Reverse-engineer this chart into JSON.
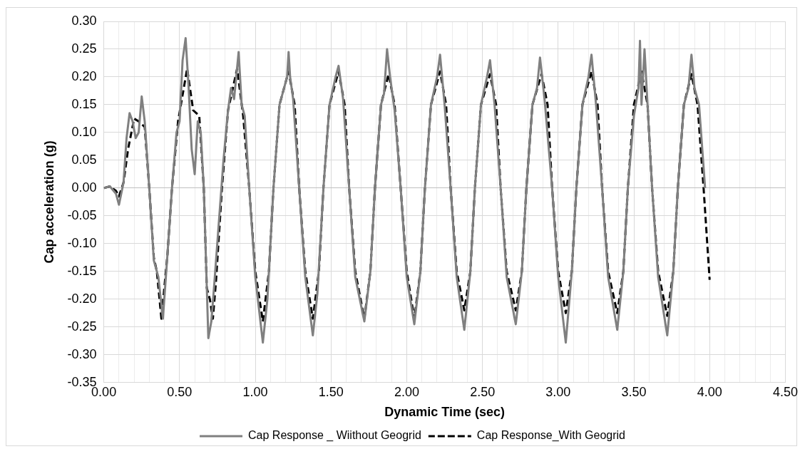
{
  "chart_data": {
    "type": "line",
    "xlabel": "Dynamic Time (sec)",
    "ylabel": "Cap acceleration (g)",
    "xlim": [
      0,
      4.5
    ],
    "xticks": [
      {
        "value": 0,
        "label": "0.00"
      },
      {
        "value": 0.1,
        "label": null
      },
      {
        "value": 0.2,
        "label": null
      },
      {
        "value": 0.3,
        "label": null
      },
      {
        "value": 0.4,
        "label": null
      },
      {
        "value": 0.5,
        "label": "0.50"
      },
      {
        "value": 0.6,
        "label": null
      },
      {
        "value": 0.7,
        "label": null
      },
      {
        "value": 0.8,
        "label": null
      },
      {
        "value": 0.9,
        "label": null
      },
      {
        "value": 1,
        "label": "1.00"
      },
      {
        "value": 1.1,
        "label": null
      },
      {
        "value": 1.2,
        "label": null
      },
      {
        "value": 1.3,
        "label": null
      },
      {
        "value": 1.4,
        "label": null
      },
      {
        "value": 1.5,
        "label": "1.50"
      },
      {
        "value": 1.6,
        "label": null
      },
      {
        "value": 1.7,
        "label": null
      },
      {
        "value": 1.8,
        "label": null
      },
      {
        "value": 1.9,
        "label": null
      },
      {
        "value": 2,
        "label": "2.00"
      },
      {
        "value": 2.1,
        "label": null
      },
      {
        "value": 2.2,
        "label": null
      },
      {
        "value": 2.3,
        "label": null
      },
      {
        "value": 2.4,
        "label": null
      },
      {
        "value": 2.5,
        "label": "2.50"
      },
      {
        "value": 2.6,
        "label": null
      },
      {
        "value": 2.7,
        "label": null
      },
      {
        "value": 2.8,
        "label": null
      },
      {
        "value": 2.9,
        "label": null
      },
      {
        "value": 3,
        "label": "3.00"
      },
      {
        "value": 3.1,
        "label": null
      },
      {
        "value": 3.2,
        "label": null
      },
      {
        "value": 3.3,
        "label": null
      },
      {
        "value": 3.4,
        "label": null
      },
      {
        "value": 3.5,
        "label": "3.50"
      },
      {
        "value": 3.6,
        "label": null
      },
      {
        "value": 3.7,
        "label": null
      },
      {
        "value": 3.8,
        "label": null
      },
      {
        "value": 3.9,
        "label": null
      },
      {
        "value": 4,
        "label": "4.00"
      },
      {
        "value": 4.1,
        "label": null
      },
      {
        "value": 4.2,
        "label": null
      },
      {
        "value": 4.3,
        "label": null
      },
      {
        "value": 4.4,
        "label": null
      },
      {
        "value": 4.5,
        "label": "4.50"
      }
    ],
    "ylim": [
      -0.35,
      0.3
    ],
    "yticks": [
      {
        "value": -0.35,
        "label": "-0.35"
      },
      {
        "value": -0.3,
        "label": "-0.30"
      },
      {
        "value": -0.25,
        "label": "-0.25"
      },
      {
        "value": -0.2,
        "label": "-0.20"
      },
      {
        "value": -0.15,
        "label": "-0.15"
      },
      {
        "value": -0.1,
        "label": "-0.10"
      },
      {
        "value": -0.05,
        "label": "-0.05"
      },
      {
        "value": 0,
        "label": "0.00"
      },
      {
        "value": 0.05,
        "label": "0.05"
      },
      {
        "value": 0.1,
        "label": "0.10"
      },
      {
        "value": 0.15,
        "label": "0.15"
      },
      {
        "value": 0.2,
        "label": "0.20"
      },
      {
        "value": 0.25,
        "label": "0.25"
      },
      {
        "value": 0.3,
        "label": "0.30"
      }
    ],
    "grid": true,
    "legend": "bottom",
    "marker": "none",
    "series": [
      {
        "name": "Cap Response _ Wiithout Geogrid",
        "color": "#808080",
        "line_style": "solid",
        "x": [
          0,
          0.04,
          0.08,
          0.1,
          0.13,
          0.15,
          0.17,
          0.19,
          0.21,
          0.23,
          0.25,
          0.27,
          0.3,
          0.33,
          0.36,
          0.39,
          0.42,
          0.45,
          0.48,
          0.5,
          0.52,
          0.54,
          0.56,
          0.58,
          0.6,
          0.62,
          0.64,
          0.66,
          0.69,
          0.71,
          0.73,
          0.76,
          0.79,
          0.82,
          0.84,
          0.86,
          0.89,
          0.91,
          0.93,
          0.96,
          1.0,
          1.05,
          1.08,
          1.12,
          1.16,
          1.19,
          1.21,
          1.22,
          1.23,
          1.25,
          1.29,
          1.33,
          1.38,
          1.41,
          1.45,
          1.49,
          1.53,
          1.55,
          1.58,
          1.62,
          1.66,
          1.72,
          1.76,
          1.79,
          1.83,
          1.85,
          1.87,
          1.89,
          1.92,
          1.96,
          2.0,
          2.05,
          2.09,
          2.12,
          2.16,
          2.2,
          2.22,
          2.25,
          2.29,
          2.33,
          2.38,
          2.42,
          2.45,
          2.49,
          2.53,
          2.55,
          2.58,
          2.62,
          2.66,
          2.72,
          2.76,
          2.79,
          2.83,
          2.86,
          2.88,
          2.91,
          2.96,
          3.0,
          3.05,
          3.09,
          3.12,
          3.16,
          3.2,
          3.22,
          3.25,
          3.29,
          3.33,
          3.39,
          3.43,
          3.46,
          3.5,
          3.53,
          3.54,
          3.55,
          3.57,
          3.59,
          3.62,
          3.66,
          3.72,
          3.76,
          3.79,
          3.83,
          3.86,
          3.88,
          3.9,
          3.93,
          3.97
        ],
        "values": [
          0,
          0.003,
          -0.01,
          -0.03,
          0.01,
          0.09,
          0.135,
          0.12,
          0.09,
          0.1,
          0.165,
          0.12,
          0,
          -0.13,
          -0.16,
          -0.235,
          -0.12,
          0,
          0.1,
          0.12,
          0.23,
          0.27,
          0.18,
          0.07,
          0.025,
          0.12,
          0.1,
          0,
          -0.27,
          -0.24,
          -0.17,
          -0.06,
          0.05,
          0.14,
          0.18,
          0.16,
          0.245,
          0.15,
          0.13,
          0,
          -0.16,
          -0.278,
          -0.2,
          0,
          0.15,
          0.18,
          0.2,
          0.245,
          0.2,
          0.16,
          0,
          -0.16,
          -0.265,
          -0.19,
          0,
          0.15,
          0.2,
          0.22,
          0.16,
          0,
          -0.16,
          -0.24,
          -0.15,
          0,
          0.15,
          0.17,
          0.25,
          0.2,
          0.14,
          0,
          -0.16,
          -0.245,
          -0.15,
          0,
          0.15,
          0.2,
          0.24,
          0.15,
          0,
          -0.16,
          -0.255,
          -0.15,
          0,
          0.15,
          0.2,
          0.23,
          0.15,
          0,
          -0.16,
          -0.245,
          -0.15,
          0,
          0.15,
          0.18,
          0.235,
          0.16,
          0,
          -0.16,
          -0.278,
          -0.15,
          0,
          0.15,
          0.2,
          0.24,
          0.15,
          0,
          -0.16,
          -0.255,
          -0.15,
          0,
          0.13,
          0.18,
          0.265,
          0.15,
          0.25,
          0.15,
          0,
          -0.16,
          -0.265,
          -0.15,
          0,
          0.15,
          0.18,
          0.24,
          0.18,
          0.15,
          0
        ]
      },
      {
        "name": "Cap Response_With Geogrid",
        "color": "#000000",
        "line_style": "dashed",
        "x": [
          0,
          0.04,
          0.08,
          0.1,
          0.13,
          0.16,
          0.2,
          0.23,
          0.27,
          0.3,
          0.33,
          0.35,
          0.38,
          0.42,
          0.45,
          0.49,
          0.55,
          0.59,
          0.63,
          0.66,
          0.68,
          0.7,
          0.72,
          0.74,
          0.78,
          0.82,
          0.88,
          0.92,
          0.96,
          1.0,
          1.05,
          1.09,
          1.12,
          1.16,
          1.22,
          1.26,
          1.29,
          1.33,
          1.38,
          1.42,
          1.45,
          1.49,
          1.55,
          1.59,
          1.62,
          1.66,
          1.72,
          1.76,
          1.79,
          1.83,
          1.88,
          1.92,
          1.96,
          2.0,
          2.05,
          2.09,
          2.12,
          2.16,
          2.22,
          2.26,
          2.29,
          2.33,
          2.38,
          2.42,
          2.45,
          2.49,
          2.55,
          2.59,
          2.62,
          2.66,
          2.72,
          2.76,
          2.79,
          2.83,
          2.89,
          2.93,
          2.96,
          3.0,
          3.05,
          3.09,
          3.12,
          3.16,
          3.22,
          3.26,
          3.29,
          3.33,
          3.39,
          3.43,
          3.46,
          3.5,
          3.55,
          3.59,
          3.62,
          3.66,
          3.72,
          3.76,
          3.79,
          3.83,
          3.88,
          3.92,
          3.96,
          4.0
        ],
        "values": [
          0,
          0.003,
          -0.005,
          -0.015,
          0.01,
          0.07,
          0.125,
          0.12,
          0.11,
          0,
          -0.125,
          -0.15,
          -0.235,
          -0.12,
          0,
          0.12,
          0.215,
          0.14,
          0.13,
          0,
          -0.18,
          -0.2,
          -0.235,
          -0.17,
          0,
          0.14,
          0.215,
          0.13,
          0,
          -0.15,
          -0.24,
          -0.15,
          0,
          0.15,
          0.21,
          0.15,
          0,
          -0.15,
          -0.235,
          -0.15,
          0,
          0.15,
          0.21,
          0.15,
          0,
          -0.15,
          -0.235,
          -0.15,
          0,
          0.15,
          0.205,
          0.15,
          0,
          -0.15,
          -0.235,
          -0.15,
          0,
          0.15,
          0.21,
          0.15,
          0,
          -0.15,
          -0.22,
          -0.15,
          0,
          0.15,
          0.205,
          0.15,
          0,
          -0.15,
          -0.22,
          -0.15,
          0,
          0.15,
          0.205,
          0.15,
          0,
          -0.15,
          -0.225,
          -0.15,
          0,
          0.15,
          0.21,
          0.15,
          0,
          -0.15,
          -0.225,
          -0.15,
          0,
          0.15,
          0.21,
          0.15,
          0,
          -0.15,
          -0.23,
          -0.15,
          0,
          0.15,
          0.205,
          0.15,
          0,
          -0.165
        ]
      }
    ]
  }
}
